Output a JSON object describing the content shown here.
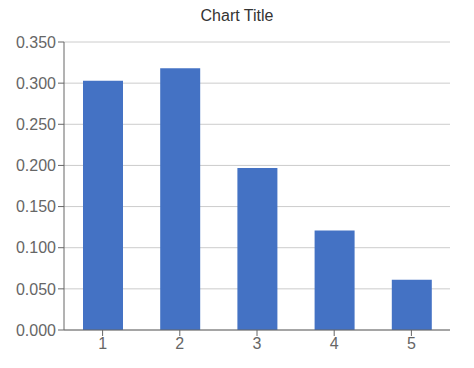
{
  "chart_data": {
    "type": "bar",
    "title": "Chart Title",
    "x": [
      1,
      2,
      3,
      4,
      5
    ],
    "values": [
      0.303,
      0.318,
      0.197,
      0.121,
      0.061
    ],
    "color": "#4472C4",
    "xlim": [
      0.5,
      5.5
    ],
    "xticks": [
      1,
      2,
      3,
      4,
      5
    ],
    "ylim": [
      0.0,
      0.35
    ],
    "yticks": [
      {
        "value": 0.0,
        "label": "0.000"
      },
      {
        "value": 0.05,
        "label": "0.050"
      },
      {
        "value": 0.1,
        "label": "0.100"
      },
      {
        "value": 0.15,
        "label": "0.150"
      },
      {
        "value": 0.2,
        "label": "0.200"
      },
      {
        "value": 0.25,
        "label": "0.250"
      },
      {
        "value": 0.3,
        "label": "0.300"
      },
      {
        "value": 0.35,
        "label": "0.350"
      }
    ],
    "grid": true
  }
}
